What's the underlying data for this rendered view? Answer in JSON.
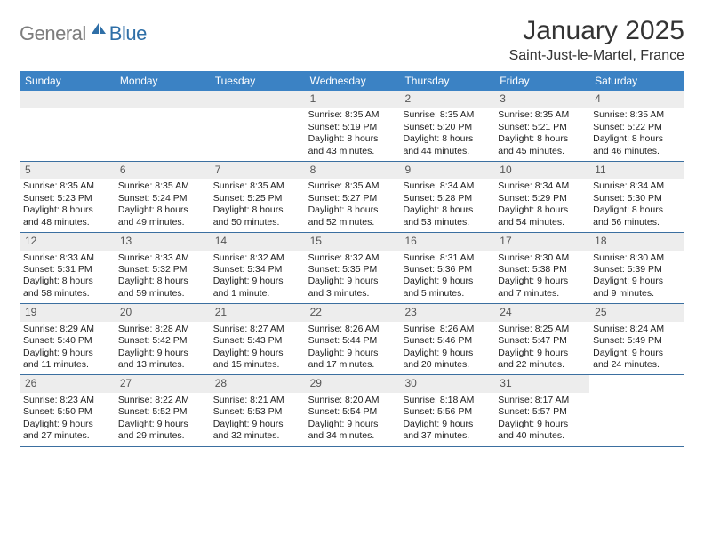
{
  "logo": {
    "text1": "General",
    "text2": "Blue"
  },
  "title": "January 2025",
  "location": "Saint-Just-le-Martel, France",
  "colors": {
    "header_bg": "#3b82c4",
    "header_text": "#ffffff",
    "daynum_bg": "#ededed",
    "daynum_text": "#555555",
    "body_text": "#222222",
    "divider": "#3b6fa0",
    "logo_gray": "#7d7d7d",
    "logo_blue": "#2f6fa7"
  },
  "day_names": [
    "Sunday",
    "Monday",
    "Tuesday",
    "Wednesday",
    "Thursday",
    "Friday",
    "Saturday"
  ],
  "weeks": [
    [
      null,
      null,
      null,
      {
        "n": "1",
        "sr": "8:35 AM",
        "ss": "5:19 PM",
        "dl": "8 hours and 43 minutes."
      },
      {
        "n": "2",
        "sr": "8:35 AM",
        "ss": "5:20 PM",
        "dl": "8 hours and 44 minutes."
      },
      {
        "n": "3",
        "sr": "8:35 AM",
        "ss": "5:21 PM",
        "dl": "8 hours and 45 minutes."
      },
      {
        "n": "4",
        "sr": "8:35 AM",
        "ss": "5:22 PM",
        "dl": "8 hours and 46 minutes."
      }
    ],
    [
      {
        "n": "5",
        "sr": "8:35 AM",
        "ss": "5:23 PM",
        "dl": "8 hours and 48 minutes."
      },
      {
        "n": "6",
        "sr": "8:35 AM",
        "ss": "5:24 PM",
        "dl": "8 hours and 49 minutes."
      },
      {
        "n": "7",
        "sr": "8:35 AM",
        "ss": "5:25 PM",
        "dl": "8 hours and 50 minutes."
      },
      {
        "n": "8",
        "sr": "8:35 AM",
        "ss": "5:27 PM",
        "dl": "8 hours and 52 minutes."
      },
      {
        "n": "9",
        "sr": "8:34 AM",
        "ss": "5:28 PM",
        "dl": "8 hours and 53 minutes."
      },
      {
        "n": "10",
        "sr": "8:34 AM",
        "ss": "5:29 PM",
        "dl": "8 hours and 54 minutes."
      },
      {
        "n": "11",
        "sr": "8:34 AM",
        "ss": "5:30 PM",
        "dl": "8 hours and 56 minutes."
      }
    ],
    [
      {
        "n": "12",
        "sr": "8:33 AM",
        "ss": "5:31 PM",
        "dl": "8 hours and 58 minutes."
      },
      {
        "n": "13",
        "sr": "8:33 AM",
        "ss": "5:32 PM",
        "dl": "8 hours and 59 minutes."
      },
      {
        "n": "14",
        "sr": "8:32 AM",
        "ss": "5:34 PM",
        "dl": "9 hours and 1 minute."
      },
      {
        "n": "15",
        "sr": "8:32 AM",
        "ss": "5:35 PM",
        "dl": "9 hours and 3 minutes."
      },
      {
        "n": "16",
        "sr": "8:31 AM",
        "ss": "5:36 PM",
        "dl": "9 hours and 5 minutes."
      },
      {
        "n": "17",
        "sr": "8:30 AM",
        "ss": "5:38 PM",
        "dl": "9 hours and 7 minutes."
      },
      {
        "n": "18",
        "sr": "8:30 AM",
        "ss": "5:39 PM",
        "dl": "9 hours and 9 minutes."
      }
    ],
    [
      {
        "n": "19",
        "sr": "8:29 AM",
        "ss": "5:40 PM",
        "dl": "9 hours and 11 minutes."
      },
      {
        "n": "20",
        "sr": "8:28 AM",
        "ss": "5:42 PM",
        "dl": "9 hours and 13 minutes."
      },
      {
        "n": "21",
        "sr": "8:27 AM",
        "ss": "5:43 PM",
        "dl": "9 hours and 15 minutes."
      },
      {
        "n": "22",
        "sr": "8:26 AM",
        "ss": "5:44 PM",
        "dl": "9 hours and 17 minutes."
      },
      {
        "n": "23",
        "sr": "8:26 AM",
        "ss": "5:46 PM",
        "dl": "9 hours and 20 minutes."
      },
      {
        "n": "24",
        "sr": "8:25 AM",
        "ss": "5:47 PM",
        "dl": "9 hours and 22 minutes."
      },
      {
        "n": "25",
        "sr": "8:24 AM",
        "ss": "5:49 PM",
        "dl": "9 hours and 24 minutes."
      }
    ],
    [
      {
        "n": "26",
        "sr": "8:23 AM",
        "ss": "5:50 PM",
        "dl": "9 hours and 27 minutes."
      },
      {
        "n": "27",
        "sr": "8:22 AM",
        "ss": "5:52 PM",
        "dl": "9 hours and 29 minutes."
      },
      {
        "n": "28",
        "sr": "8:21 AM",
        "ss": "5:53 PM",
        "dl": "9 hours and 32 minutes."
      },
      {
        "n": "29",
        "sr": "8:20 AM",
        "ss": "5:54 PM",
        "dl": "9 hours and 34 minutes."
      },
      {
        "n": "30",
        "sr": "8:18 AM",
        "ss": "5:56 PM",
        "dl": "9 hours and 37 minutes."
      },
      {
        "n": "31",
        "sr": "8:17 AM",
        "ss": "5:57 PM",
        "dl": "9 hours and 40 minutes."
      },
      null
    ]
  ],
  "labels": {
    "sunrise": "Sunrise:",
    "sunset": "Sunset:",
    "daylight": "Daylight:"
  }
}
